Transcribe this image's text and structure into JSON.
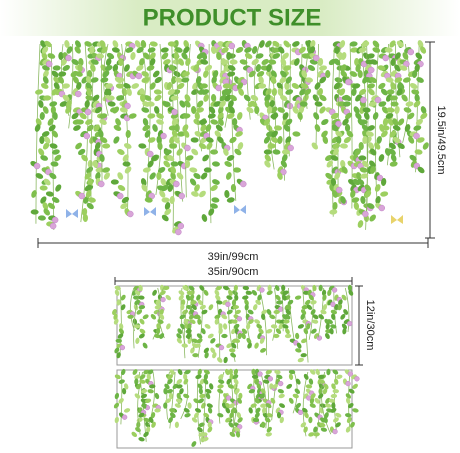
{
  "header": {
    "title": "PRODUCT SIZE"
  },
  "large_decal": {
    "width_label": "39in/99cm",
    "height_label": "19.5in/49.5cm"
  },
  "small_decal": {
    "width_label": "35in/90cm",
    "height_label": "12in/30cm"
  }
}
